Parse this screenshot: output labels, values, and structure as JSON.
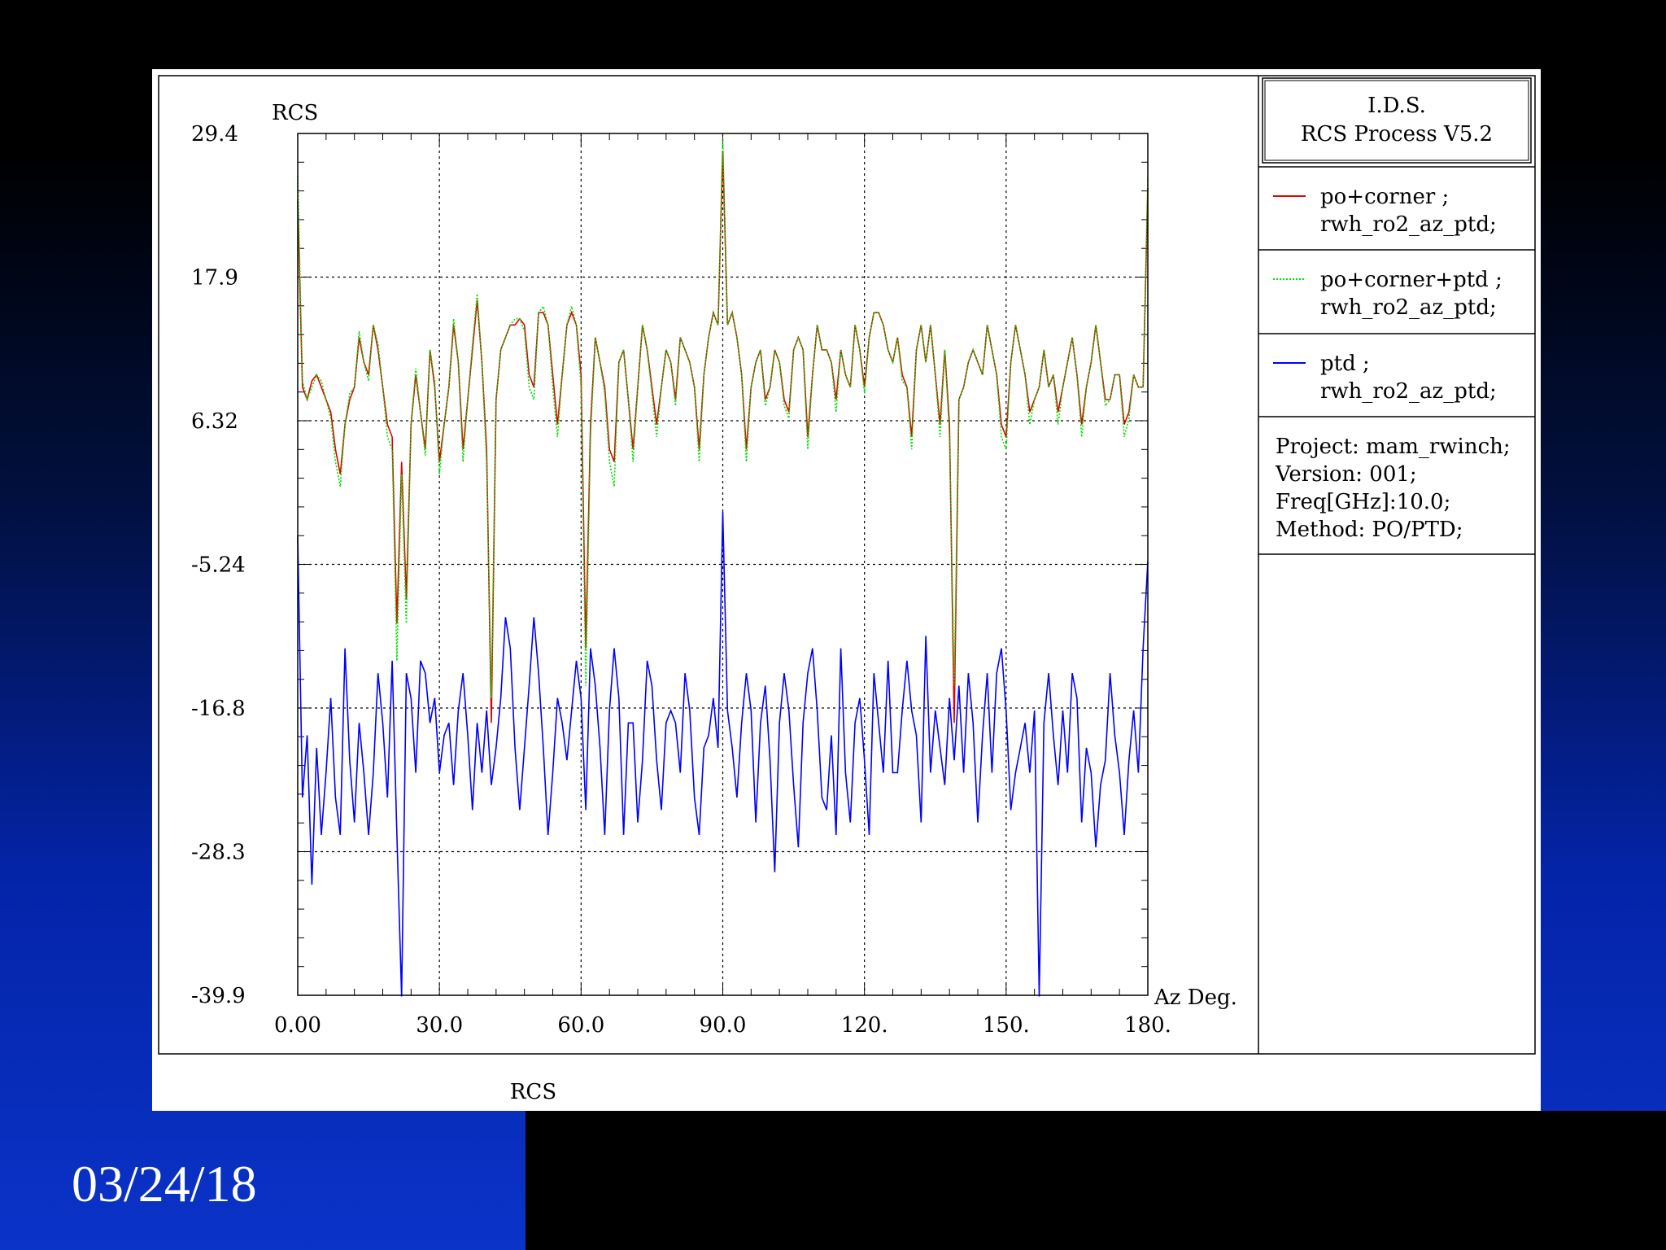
{
  "slide": {
    "footer_date": "03/24/18",
    "caption": "RCS",
    "colors": {
      "panel": "#ffffff",
      "bg_bottom": "#0a33c8"
    }
  },
  "info_box": {
    "title_line1": "I.D.S.",
    "title_line2": "RCS Process V5.2",
    "project": "Project: mam_rwinch;",
    "version": "Version: 001;",
    "freq": "Freq[GHz]:10.0;",
    "method": "Method: PO/PTD;"
  },
  "legend": [
    {
      "line1": "po+corner ;",
      "line2": "rwh_ro2_az_ptd;",
      "color": "#e00000",
      "dash": "solid"
    },
    {
      "line1": "po+corner+ptd ;",
      "line2": "rwh_ro2_az_ptd;",
      "color": "#00e000",
      "dash": "dotted"
    },
    {
      "line1": "ptd ;",
      "line2": "rwh_ro2_az_ptd;",
      "color": "#0000ff",
      "dash": "solid"
    }
  ],
  "chart_data": {
    "type": "line",
    "ylabel": "RCS",
    "xlabel": "Az Deg.",
    "xlim": [
      0,
      180
    ],
    "ylim": [
      -39.9,
      29.4
    ],
    "xticks": [
      "0.00",
      "30.0",
      "60.0",
      "90.0",
      "120.",
      "150.",
      "180."
    ],
    "yticks": [
      "29.4",
      "17.9",
      "6.32",
      "-5.24",
      "-16.8",
      "-28.3",
      "-39.9"
    ],
    "grid": "dotted",
    "series": [
      {
        "name": "po+corner ; rwh_ro2_az_ptd;",
        "color": "#e00000",
        "x": [
          0,
          1,
          2,
          3,
          4,
          5,
          6,
          7,
          8,
          9,
          10,
          11,
          12,
          13,
          14,
          15,
          16,
          17,
          18,
          19,
          20,
          21,
          22,
          23,
          24,
          25,
          26,
          27,
          28,
          29,
          30,
          31,
          32,
          33,
          34,
          35,
          36,
          37,
          38,
          39,
          40,
          41,
          42,
          43,
          44,
          45,
          46,
          47,
          48,
          49,
          50,
          51,
          52,
          53,
          54,
          55,
          56,
          57,
          58,
          59,
          60,
          61,
          62,
          63,
          64,
          65,
          66,
          67,
          68,
          69,
          70,
          71,
          72,
          73,
          74,
          75,
          76,
          77,
          78,
          79,
          80,
          81,
          82,
          83,
          84,
          85,
          86,
          87,
          88,
          89,
          90,
          91,
          92,
          93,
          94,
          95,
          96,
          97,
          98,
          99,
          100,
          101,
          102,
          103,
          104,
          105,
          106,
          107,
          108,
          109,
          110,
          111,
          112,
          113,
          114,
          115,
          116,
          117,
          118,
          119,
          120,
          121,
          122,
          123,
          124,
          125,
          126,
          127,
          128,
          129,
          130,
          131,
          132,
          133,
          134,
          135,
          136,
          137,
          138,
          139,
          140,
          141,
          142,
          143,
          144,
          145,
          146,
          147,
          148,
          149,
          150,
          151,
          152,
          153,
          154,
          155,
          156,
          157,
          158,
          159,
          160,
          161,
          162,
          163,
          164,
          165,
          166,
          167,
          168,
          169,
          170,
          171,
          172,
          173,
          174,
          175,
          176,
          177,
          178,
          179,
          180
        ],
        "y": [
          24,
          9,
          8,
          9.5,
          10,
          9,
          8,
          7,
          4,
          2,
          6,
          8,
          9,
          13,
          11,
          10,
          14,
          12,
          9,
          6,
          5,
          -10,
          3,
          -8,
          6,
          10,
          7,
          4,
          12,
          9,
          3,
          6,
          9,
          14,
          11,
          4,
          8,
          12,
          16,
          11,
          4,
          -18,
          8,
          12,
          13,
          14,
          14,
          14.5,
          14,
          10,
          9,
          15,
          15,
          14,
          10,
          6,
          10,
          14,
          15,
          14,
          10,
          -12,
          6,
          13,
          11,
          9,
          4,
          3,
          11,
          12,
          8,
          4,
          9,
          14,
          12,
          9,
          6,
          9,
          12,
          11,
          8,
          13,
          12,
          11,
          9,
          4,
          10,
          13,
          15,
          14,
          28,
          14,
          15,
          13,
          10,
          4,
          9,
          11,
          12,
          8,
          9,
          12,
          11,
          8,
          7,
          12,
          13,
          12,
          5,
          10,
          14,
          12,
          12,
          11,
          8,
          12,
          10,
          9,
          14,
          12,
          9,
          13,
          15,
          15,
          14,
          12,
          11,
          13,
          10,
          9,
          5,
          12,
          14,
          11,
          14,
          10,
          6,
          12,
          6,
          -18,
          8,
          9,
          11,
          12,
          11,
          10,
          14,
          12,
          10,
          6,
          5,
          11,
          14,
          12,
          10,
          7,
          8,
          9,
          12,
          9,
          10,
          7,
          9,
          11,
          13,
          10,
          6,
          9,
          11,
          14,
          11,
          8,
          8,
          10,
          10,
          6,
          7,
          10,
          9,
          9,
          25
        ]
      },
      {
        "name": "po+corner+ptd ; rwh_ro2_az_ptd;",
        "color": "#00e000",
        "x": [
          0,
          1,
          2,
          3,
          4,
          5,
          6,
          7,
          8,
          9,
          10,
          11,
          12,
          13,
          14,
          15,
          16,
          17,
          18,
          19,
          20,
          21,
          22,
          23,
          24,
          25,
          26,
          27,
          28,
          29,
          30,
          31,
          32,
          33,
          34,
          35,
          36,
          37,
          38,
          39,
          40,
          41,
          42,
          43,
          44,
          45,
          46,
          47,
          48,
          49,
          50,
          51,
          52,
          53,
          54,
          55,
          56,
          57,
          58,
          59,
          60,
          61,
          62,
          63,
          64,
          65,
          66,
          67,
          68,
          69,
          70,
          71,
          72,
          73,
          74,
          75,
          76,
          77,
          78,
          79,
          80,
          81,
          82,
          83,
          84,
          85,
          86,
          87,
          88,
          89,
          90,
          91,
          92,
          93,
          94,
          95,
          96,
          97,
          98,
          99,
          100,
          101,
          102,
          103,
          104,
          105,
          106,
          107,
          108,
          109,
          110,
          111,
          112,
          113,
          114,
          115,
          116,
          117,
          118,
          119,
          120,
          121,
          122,
          123,
          124,
          125,
          126,
          127,
          128,
          129,
          130,
          131,
          132,
          133,
          134,
          135,
          136,
          137,
          138,
          139,
          140,
          141,
          142,
          143,
          144,
          145,
          146,
          147,
          148,
          149,
          150,
          151,
          152,
          153,
          154,
          155,
          156,
          157,
          158,
          159,
          160,
          161,
          162,
          163,
          164,
          165,
          166,
          167,
          168,
          169,
          170,
          171,
          172,
          173,
          174,
          175,
          176,
          177,
          178,
          179,
          180
        ],
        "y": [
          26,
          9.5,
          8,
          9,
          10,
          9.5,
          8,
          6.5,
          3,
          1,
          6,
          8.5,
          9,
          13.5,
          11,
          9.5,
          14,
          12.5,
          9,
          5,
          4,
          -13,
          2,
          -10,
          6,
          10.5,
          7,
          3.5,
          12,
          9.5,
          2,
          6,
          9,
          14.5,
          11,
          3,
          8,
          12.5,
          16.5,
          11,
          3,
          -16,
          8,
          12,
          13,
          14,
          14.5,
          14.5,
          13.5,
          9,
          8,
          15,
          15.5,
          14,
          9,
          5,
          10,
          14,
          15.5,
          14,
          9,
          -15,
          5,
          13,
          11,
          8.5,
          3,
          1,
          11,
          12,
          8,
          3,
          9,
          14,
          12,
          8.5,
          5,
          9,
          12,
          11,
          7.5,
          13,
          12,
          11,
          9,
          3,
          10,
          13,
          15,
          14,
          29,
          14,
          15,
          13,
          10,
          3,
          9,
          11,
          12,
          7.5,
          9,
          12,
          11,
          7.5,
          6.5,
          12,
          13,
          12,
          4,
          10,
          14,
          12,
          12,
          11,
          7,
          12,
          10,
          9,
          14,
          12,
          8.5,
          13,
          15,
          15,
          14,
          12,
          11,
          13,
          9.5,
          9,
          4,
          12,
          14,
          11,
          14,
          10,
          5,
          12,
          5,
          -15,
          8,
          9,
          11,
          12,
          11,
          10,
          14,
          12,
          10,
          5,
          4,
          11,
          14,
          12,
          10,
          6,
          8,
          9,
          12,
          9,
          10,
          6,
          9,
          11,
          13,
          10,
          5,
          9,
          11,
          14,
          11,
          7.5,
          8,
          10,
          10,
          5,
          6.5,
          10,
          9,
          9,
          26
        ]
      },
      {
        "name": "ptd ; rwh_ro2_az_ptd;",
        "color": "#0000ff",
        "x": [
          0,
          1,
          2,
          3,
          4,
          5,
          6,
          7,
          8,
          9,
          10,
          11,
          12,
          13,
          14,
          15,
          16,
          17,
          18,
          19,
          20,
          21,
          22,
          23,
          24,
          25,
          26,
          27,
          28,
          29,
          30,
          31,
          32,
          33,
          34,
          35,
          36,
          37,
          38,
          39,
          40,
          41,
          42,
          43,
          44,
          45,
          46,
          47,
          48,
          49,
          50,
          51,
          52,
          53,
          54,
          55,
          56,
          57,
          58,
          59,
          60,
          61,
          62,
          63,
          64,
          65,
          66,
          67,
          68,
          69,
          70,
          71,
          72,
          73,
          74,
          75,
          76,
          77,
          78,
          79,
          80,
          81,
          82,
          83,
          84,
          85,
          86,
          87,
          88,
          89,
          90,
          91,
          92,
          93,
          94,
          95,
          96,
          97,
          98,
          99,
          100,
          101,
          102,
          103,
          104,
          105,
          106,
          107,
          108,
          109,
          110,
          111,
          112,
          113,
          114,
          115,
          116,
          117,
          118,
          119,
          120,
          121,
          122,
          123,
          124,
          125,
          126,
          127,
          128,
          129,
          130,
          131,
          132,
          133,
          134,
          135,
          136,
          137,
          138,
          139,
          140,
          141,
          142,
          143,
          144,
          145,
          146,
          147,
          148,
          149,
          150,
          151,
          152,
          153,
          154,
          155,
          156,
          157,
          158,
          159,
          160,
          161,
          162,
          163,
          164,
          165,
          166,
          167,
          168,
          169,
          170,
          171,
          172,
          173,
          174,
          175,
          176,
          177,
          178,
          179,
          180
        ],
        "y": [
          -3,
          -24,
          -19,
          -31,
          -20,
          -27,
          -22,
          -16,
          -24,
          -27,
          -12,
          -21,
          -26,
          -18,
          -22,
          -27,
          -22,
          -14,
          -18,
          -24,
          -13,
          -27,
          -40,
          -14,
          -16,
          -22,
          -13,
          -14,
          -18,
          -16,
          -22,
          -19,
          -18,
          -23,
          -17,
          -14,
          -19,
          -25,
          -18,
          -22,
          -17,
          -23,
          -20,
          -16,
          -9.5,
          -12,
          -20,
          -25,
          -20,
          -15,
          -9.5,
          -14,
          -20,
          -27,
          -22,
          -16,
          -18,
          -21,
          -17,
          -13,
          -16,
          -25,
          -12,
          -15,
          -20,
          -27,
          -17,
          -12,
          -16,
          -27,
          -18,
          -18,
          -26,
          -21,
          -13,
          -15,
          -21,
          -25,
          -18,
          -17,
          -18,
          -22,
          -14,
          -17,
          -24,
          -27,
          -20,
          -19,
          -16,
          -20,
          -1,
          -17,
          -20,
          -24,
          -18,
          -14,
          -17,
          -26,
          -18,
          -15,
          -21,
          -30,
          -18,
          -14,
          -17,
          -23,
          -28,
          -18,
          -14,
          -12,
          -17,
          -24,
          -25,
          -19,
          -27,
          -12,
          -22,
          -26,
          -18,
          -16,
          -21,
          -27,
          -14,
          -18,
          -22,
          -13,
          -22,
          -22,
          -17,
          -13,
          -17,
          -19,
          -26,
          -11,
          -22,
          -17,
          -20,
          -23,
          -16,
          -21,
          -15,
          -22,
          -14,
          -18,
          -26,
          -19,
          -14,
          -22,
          -14,
          -12,
          -17,
          -25,
          -22,
          -20,
          -18,
          -22,
          -17,
          -40,
          -18,
          -14,
          -19,
          -23,
          -17,
          -22,
          -14,
          -16,
          -26,
          -20,
          -22,
          -28,
          -23,
          -21,
          -14,
          -19,
          -22,
          -27,
          -21,
          -17,
          -22,
          -12,
          -5
        ]
      }
    ]
  }
}
